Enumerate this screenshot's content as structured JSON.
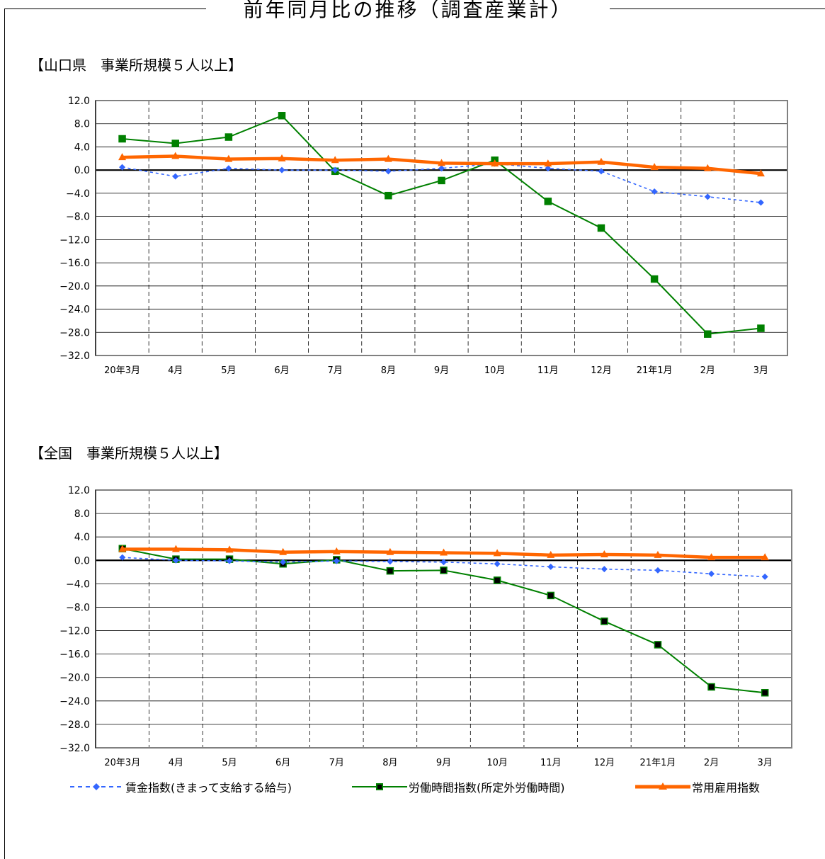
{
  "title": "前年同月比の推移（調査産業計）",
  "sections": {
    "yamaguchi": "【山口県　事業所規模５人以上】",
    "national": "【全国　事業所規模５人以上】"
  },
  "legend": {
    "wage": "賃金指数(きまって支給する給与)",
    "hours": "労働時間指数(所定外労働時間)",
    "employment": "常用雇用指数"
  },
  "colors": {
    "wage": "#3366ff",
    "hours": "#008000",
    "employment": "#ff6600",
    "grid": "#000000",
    "plot_border": "#808080"
  },
  "chart_data": [
    {
      "type": "line",
      "id": "yamaguchi",
      "title": "【山口県　事業所規模５人以上】",
      "categories": [
        "20年3月",
        "4月",
        "5月",
        "6月",
        "7月",
        "8月",
        "9月",
        "10月",
        "11月",
        "12月",
        "21年1月",
        "2月",
        "3月"
      ],
      "ylim": [
        -32,
        12
      ],
      "yticks": [
        "12.0",
        "8.0",
        "4.0",
        "0.0",
        "−4.0",
        "−8.0",
        "−12.0",
        "−16.0",
        "−20.0",
        "−24.0",
        "−28.0",
        "−32.0"
      ],
      "series": [
        {
          "name": "賃金指数(きまって支給する給与)",
          "key": "wage",
          "values": [
            0.5,
            -1.1,
            0.3,
            0.0,
            0.0,
            -0.2,
            0.3,
            1.1,
            0.3,
            -0.2,
            -3.7,
            -4.6,
            -5.6
          ]
        },
        {
          "name": "労働時間指数(所定外労働時間)",
          "key": "hours",
          "values": [
            5.4,
            4.6,
            5.7,
            9.4,
            -0.2,
            -4.4,
            -1.8,
            1.7,
            -5.4,
            -10.0,
            -18.8,
            -28.3,
            -27.3
          ]
        },
        {
          "name": "常用雇用指数",
          "key": "employment",
          "values": [
            2.2,
            2.4,
            1.9,
            2.0,
            1.7,
            1.9,
            1.2,
            1.1,
            1.1,
            1.4,
            0.5,
            0.3,
            -0.6
          ]
        }
      ]
    },
    {
      "type": "line",
      "id": "national",
      "title": "【全国　事業所規模５人以上】",
      "categories": [
        "20年3月",
        "4月",
        "5月",
        "6月",
        "7月",
        "8月",
        "9月",
        "10月",
        "11月",
        "12月",
        "21年1月",
        "2月",
        "3月"
      ],
      "ylim": [
        -32,
        12
      ],
      "yticks": [
        "12.0",
        "8.0",
        "4.0",
        "0.0",
        "−4.0",
        "−8.0",
        "−12.0",
        "−16.0",
        "−20.0",
        "−24.0",
        "−28.0",
        "−32.0"
      ],
      "series": [
        {
          "name": "賃金指数(きまって支給する給与)",
          "key": "wage",
          "values": [
            0.5,
            0.0,
            -0.1,
            -0.3,
            -0.1,
            -0.2,
            -0.3,
            -0.6,
            -1.1,
            -1.5,
            -1.7,
            -2.3,
            -2.8
          ]
        },
        {
          "name": "労働時間指数(所定外労働時間)",
          "key": "hours",
          "values": [
            2.0,
            0.2,
            0.2,
            -0.6,
            0.1,
            -1.8,
            -1.7,
            -3.4,
            -6.0,
            -10.4,
            -14.4,
            -21.6,
            -22.6
          ]
        },
        {
          "name": "常用雇用指数",
          "key": "employment",
          "values": [
            1.9,
            1.9,
            1.8,
            1.4,
            1.5,
            1.4,
            1.3,
            1.2,
            0.9,
            1.0,
            0.9,
            0.5,
            0.5
          ]
        }
      ]
    }
  ]
}
